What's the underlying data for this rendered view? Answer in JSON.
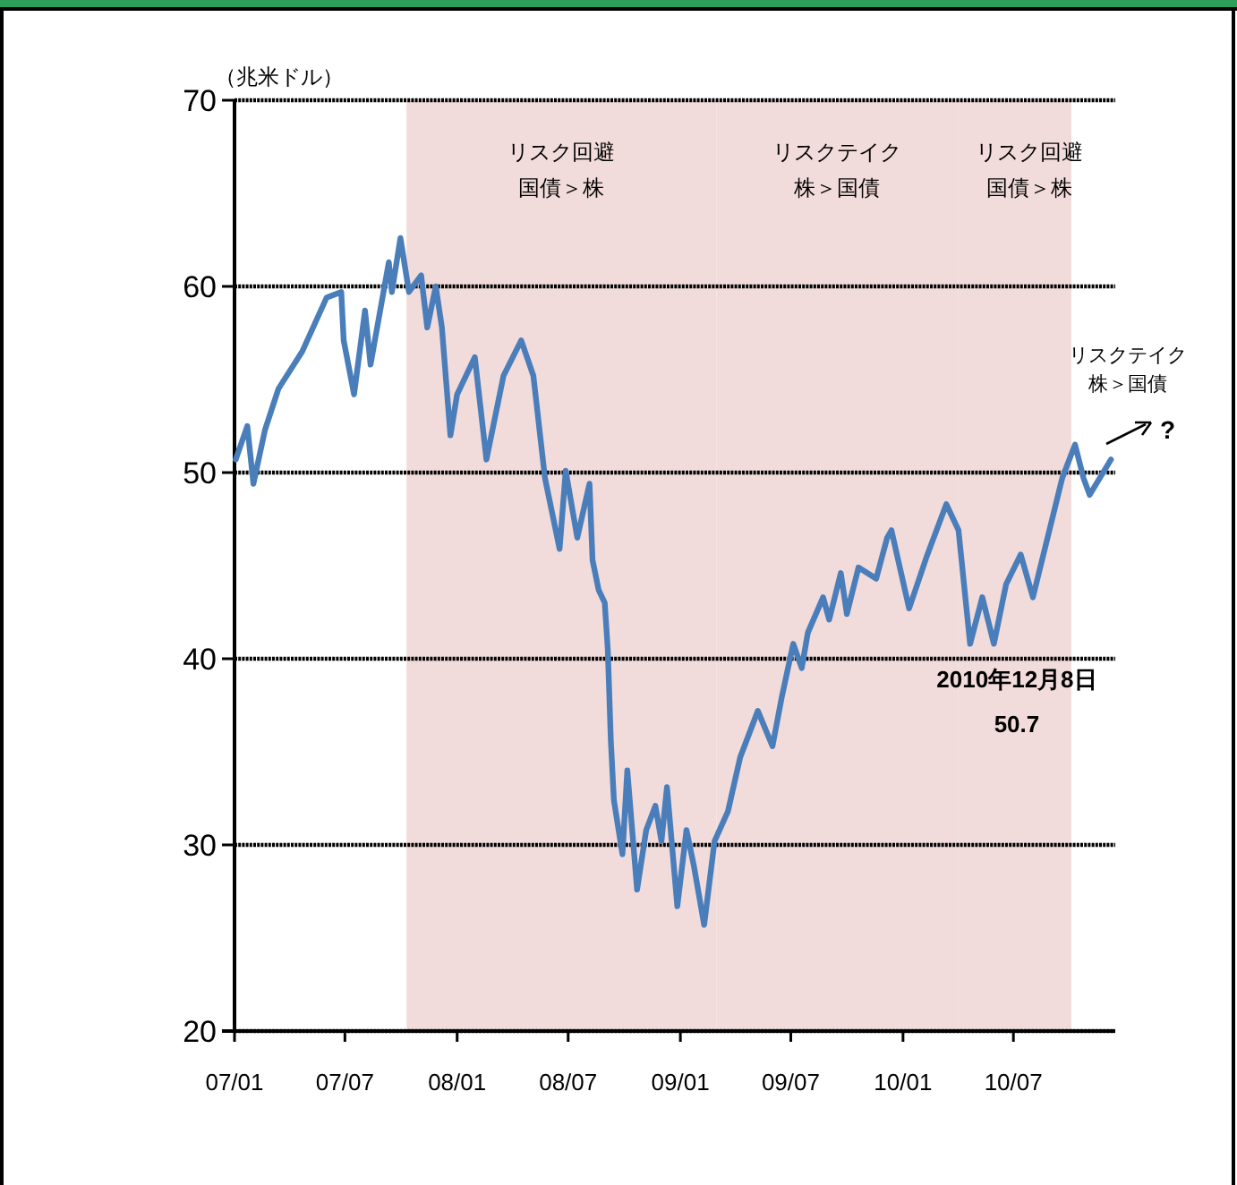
{
  "chart_data": {
    "type": "line",
    "ylabel": "（兆米ドル）",
    "x": [
      "2007-01-03",
      "2007-01-22",
      "2007-02-01",
      "2007-02-20",
      "2007-03-14",
      "2007-04-22",
      "2007-06-01",
      "2007-06-25",
      "2007-06-29",
      "2007-07-16",
      "2007-08-03",
      "2007-08-12",
      "2007-09-11",
      "2007-09-16",
      "2007-09-30",
      "2007-10-14",
      "2007-11-03",
      "2007-11-13",
      "2007-11-27",
      "2007-12-07",
      "2007-12-21",
      "2008-01-01",
      "2008-01-30",
      "2008-02-18",
      "2008-03-17",
      "2008-04-15",
      "2008-05-05",
      "2008-05-24",
      "2008-06-17",
      "2008-06-27",
      "2008-07-16",
      "2008-08-05",
      "2008-08-10",
      "2008-08-20",
      "2008-08-30",
      "2008-09-04",
      "2008-09-09",
      "2008-09-14",
      "2008-09-28",
      "2008-10-06",
      "2008-10-22",
      "2008-11-06",
      "2008-11-21",
      "2008-12-01",
      "2008-12-10",
      "2008-12-27",
      "2009-01-11",
      "2009-01-23",
      "2009-02-09",
      "2009-02-26",
      "2009-03-20",
      "2009-04-09",
      "2009-05-08",
      "2009-06-01",
      "2009-06-16",
      "2009-07-05",
      "2009-07-19",
      "2009-07-29",
      "2009-08-23",
      "2009-09-02",
      "2009-09-21",
      "2009-10-01",
      "2009-10-20",
      "2009-11-18",
      "2009-12-06",
      "2009-12-13",
      "2010-01-11",
      "2010-02-10",
      "2010-03-13",
      "2010-04-02",
      "2010-04-21",
      "2010-05-11",
      "2010-05-30",
      "2010-06-19",
      "2010-07-13",
      "2010-08-02",
      "2010-09-10",
      "2010-09-19",
      "2010-10-10",
      "2010-10-24",
      "2010-11-03",
      "2010-12-08"
    ],
    "series": [
      {
        "color": "#4a7ebb",
        "values": [
          50.7,
          52.5,
          49.4,
          52.3,
          54.5,
          56.5,
          59.4,
          59.7,
          57.1,
          54.2,
          58.7,
          55.8,
          61.3,
          59.7,
          62.6,
          59.7,
          60.6,
          57.8,
          60.0,
          57.8,
          52.0,
          54.2,
          56.2,
          50.7,
          55.2,
          57.1,
          55.2,
          49.7,
          45.9,
          50.1,
          46.5,
          49.4,
          45.3,
          43.7,
          43.0,
          40.5,
          35.6,
          32.4,
          29.5,
          34.0,
          27.6,
          30.8,
          32.1,
          30.2,
          33.1,
          26.7,
          30.8,
          28.9,
          25.7,
          30.2,
          31.8,
          34.7,
          37.2,
          35.3,
          37.9,
          40.8,
          39.5,
          41.4,
          43.3,
          42.1,
          44.6,
          42.4,
          44.9,
          44.3,
          46.5,
          46.9,
          42.7,
          45.6,
          48.3,
          46.9,
          40.8,
          43.3,
          40.8,
          44.0,
          45.6,
          43.3,
          48.5,
          49.7,
          51.5,
          49.7,
          48.8,
          50.7
        ]
      }
    ],
    "xlim": [
      "2007-01-01",
      "2010-12-15"
    ],
    "xticks": [
      {
        "value": "2007-01-01",
        "label": "07/01"
      },
      {
        "value": "2007-07-01",
        "label": "07/07"
      },
      {
        "value": "2008-01-01",
        "label": "08/01"
      },
      {
        "value": "2008-07-01",
        "label": "08/07"
      },
      {
        "value": "2009-01-01",
        "label": "09/01"
      },
      {
        "value": "2009-07-01",
        "label": "09/07"
      },
      {
        "value": "2010-01-01",
        "label": "10/01"
      },
      {
        "value": "2010-07-01",
        "label": "10/07"
      }
    ],
    "ylim": [
      20,
      70
    ],
    "yticks": [
      20,
      30,
      40,
      50,
      60,
      70
    ],
    "grid": "y",
    "bands": [
      {
        "axis": "x",
        "from": "2007-10-10",
        "to": "2009-03-01",
        "label": "リスク回避国債＞株",
        "color": "#f2dcdb"
      },
      {
        "axis": "x",
        "from": "2009-03-01",
        "to": "2010-04-01",
        "label": "リスクテイク株＞国債",
        "color": "#f2dcdb"
      },
      {
        "axis": "x",
        "from": "2010-04-01",
        "to": "2010-10-04",
        "label": "リスク回避国債＞株",
        "color": "#f2dcdb"
      }
    ],
    "annotations": [
      "2010年12月8日 50.7",
      "リスクテイク株＞国債",
      "?"
    ]
  }
}
